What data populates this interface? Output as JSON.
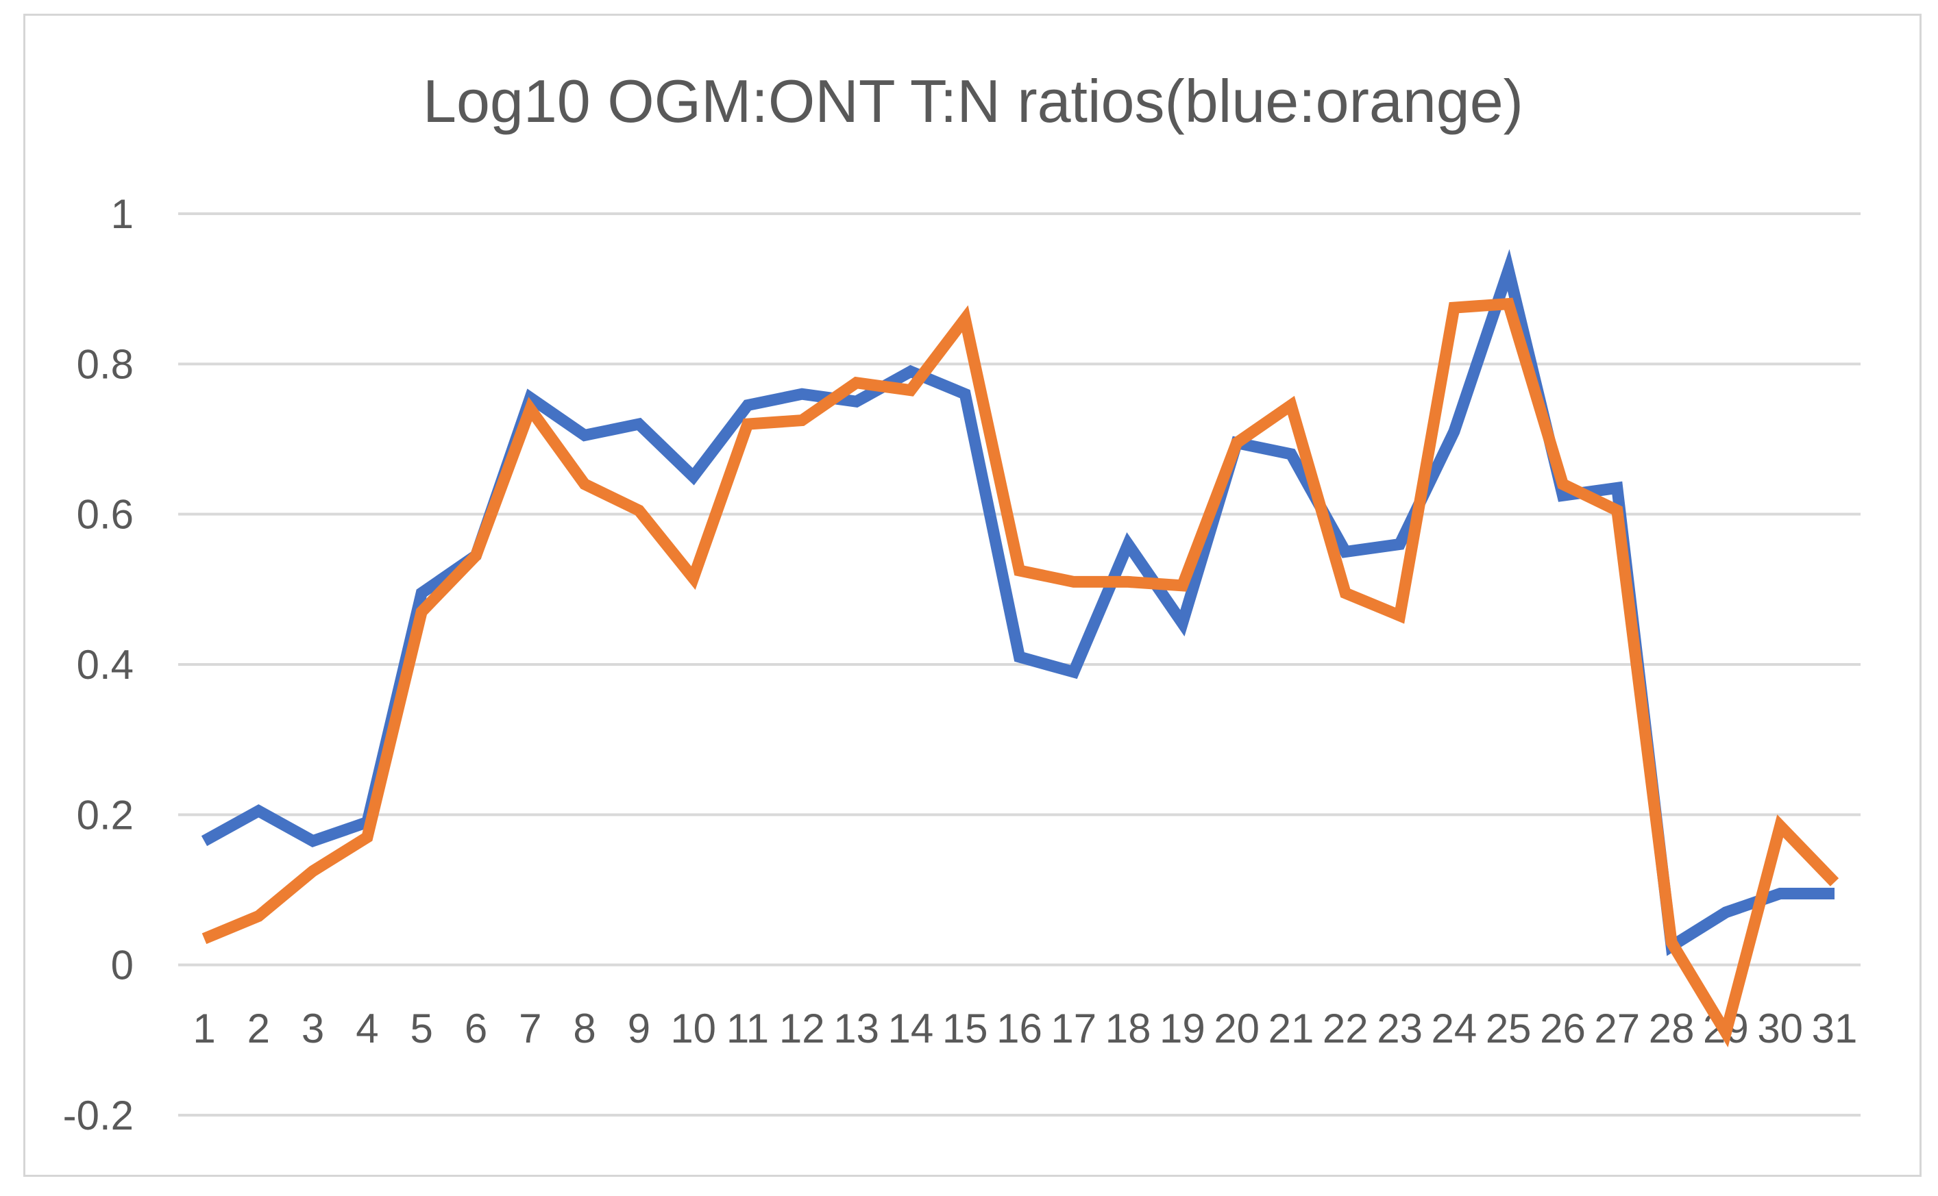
{
  "chart_data": {
    "type": "line",
    "title": "Log10 OGM:ONT T:N ratios(blue:orange)",
    "xlabel": "",
    "ylabel": "",
    "categories": [
      "1",
      "2",
      "3",
      "4",
      "5",
      "6",
      "7",
      "8",
      "9",
      "10",
      "11",
      "12",
      "13",
      "14",
      "15",
      "16",
      "17",
      "18",
      "19",
      "20",
      "21",
      "22",
      "23",
      "24",
      "25",
      "26",
      "27",
      "28",
      "29",
      "30",
      "31"
    ],
    "yticks": [
      "-0.2",
      "0",
      "0.2",
      "0.4",
      "0.6",
      "0.8",
      "1"
    ],
    "ylim": [
      -0.2,
      1
    ],
    "grid": true,
    "legend": "none",
    "series": [
      {
        "color": "#4472C4",
        "values": [
          0.165,
          0.205,
          0.165,
          0.19,
          0.495,
          0.545,
          0.755,
          0.705,
          0.72,
          0.65,
          0.745,
          0.76,
          0.75,
          0.79,
          0.76,
          0.41,
          0.39,
          0.56,
          0.455,
          0.695,
          0.68,
          0.55,
          0.56,
          0.71,
          0.925,
          0.625,
          0.635,
          0.025,
          0.07,
          0.095,
          0.095
        ]
      },
      {
        "color": "#ED7D31",
        "values": [
          0.035,
          0.065,
          0.125,
          0.17,
          0.47,
          0.545,
          0.74,
          0.64,
          0.605,
          0.515,
          0.72,
          0.725,
          0.775,
          0.765,
          0.86,
          0.525,
          0.51,
          0.51,
          0.505,
          0.695,
          0.745,
          0.495,
          0.465,
          0.875,
          0.88,
          0.64,
          0.605,
          0.03,
          -0.09,
          0.185,
          0.11
        ]
      }
    ]
  }
}
